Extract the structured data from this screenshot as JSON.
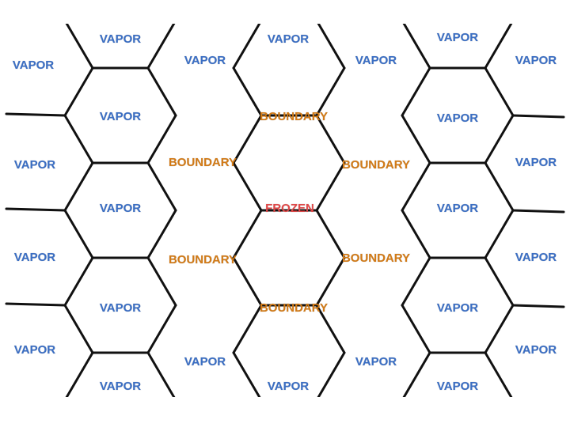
{
  "colors": {
    "vapor": "#3a6ec4",
    "boundary": "#d27a16",
    "frozen": "#e04848",
    "lines": "#111111",
    "background": "#ffffff"
  },
  "cells": [
    {
      "label": "VAPOR",
      "state": "vapor"
    },
    {
      "label": "VAPOR",
      "state": "vapor"
    },
    {
      "label": "VAPOR",
      "state": "vapor"
    },
    {
      "label": "VAPOR",
      "state": "vapor"
    },
    {
      "label": "VAPOR",
      "state": "vapor"
    },
    {
      "label": "VAPOR",
      "state": "vapor"
    },
    {
      "label": "VAPOR",
      "state": "vapor"
    },
    {
      "label": "VAPOR",
      "state": "vapor"
    },
    {
      "label": "BOUNDARY",
      "state": "boundary"
    },
    {
      "label": "VAPOR",
      "state": "vapor"
    },
    {
      "label": "VAPOR",
      "state": "vapor"
    },
    {
      "label": "BOUNDARY",
      "state": "boundary"
    },
    {
      "label": "BOUNDARY",
      "state": "boundary"
    },
    {
      "label": "VAPOR",
      "state": "vapor"
    },
    {
      "label": "VAPOR",
      "state": "vapor"
    },
    {
      "label": "FROZEN",
      "state": "frozen"
    },
    {
      "label": "VAPOR",
      "state": "vapor"
    },
    {
      "label": "VAPOR",
      "state": "vapor"
    },
    {
      "label": "BOUNDARY",
      "state": "boundary"
    },
    {
      "label": "BOUNDARY",
      "state": "boundary"
    },
    {
      "label": "VAPOR",
      "state": "vapor"
    },
    {
      "label": "VAPOR",
      "state": "vapor"
    },
    {
      "label": "BOUNDARY",
      "state": "boundary"
    },
    {
      "label": "VAPOR",
      "state": "vapor"
    },
    {
      "label": "VAPOR",
      "state": "vapor"
    },
    {
      "label": "VAPOR",
      "state": "vapor"
    },
    {
      "label": "VAPOR",
      "state": "vapor"
    },
    {
      "label": "VAPOR",
      "state": "vapor"
    },
    {
      "label": "VAPOR",
      "state": "vapor"
    },
    {
      "label": "VAPOR",
      "state": "vapor"
    },
    {
      "label": "VAPOR",
      "state": "vapor"
    },
    {
      "label": "VAPOR",
      "state": "vapor"
    }
  ]
}
